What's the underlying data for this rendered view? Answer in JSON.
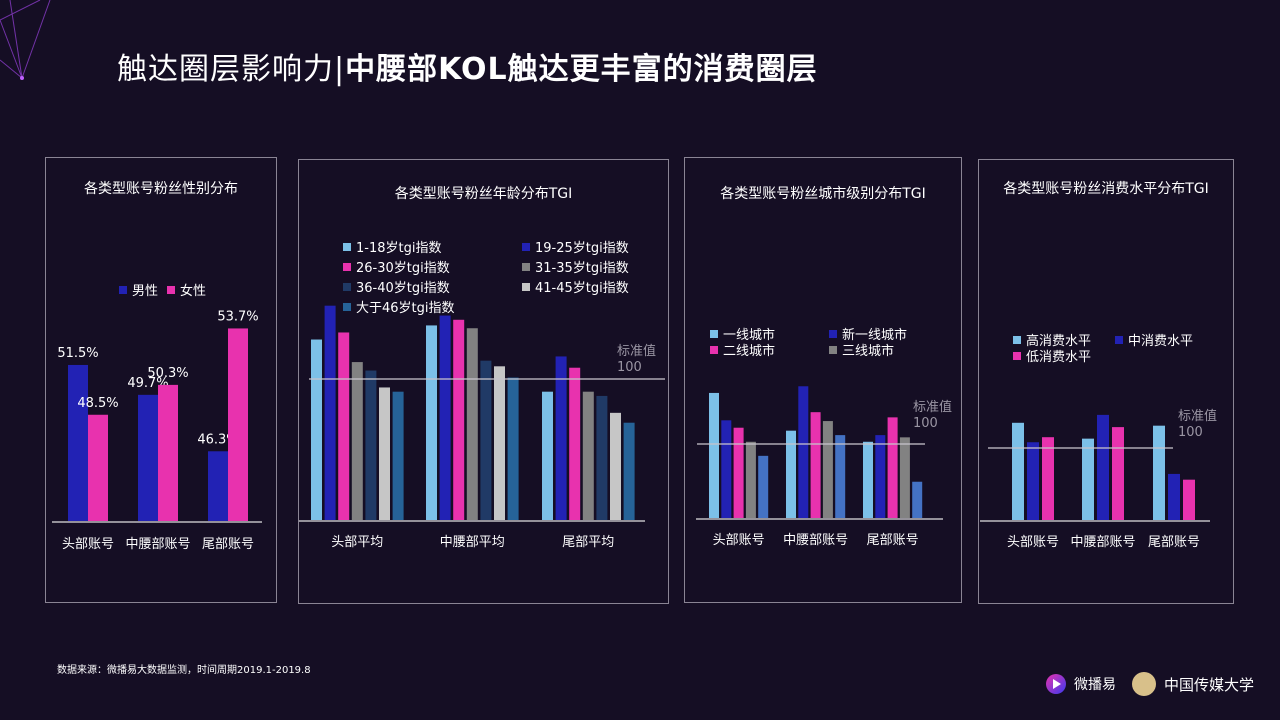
{
  "title": {
    "part1": "触达圈层影响力|",
    "part2": "中腰部KOL触达更丰富的消费圈层"
  },
  "source": "数据来源：微播易大数据监测，时间周期2019.1-2019.8",
  "logos": {
    "weiboyi": "微播易",
    "cuc": "中国传媒大学"
  },
  "standard_label": {
    "line1": "标准值",
    "line2": "100"
  },
  "chart_data": [
    {
      "type": "bar",
      "title": "各类型账号粉丝性别分布",
      "categories": [
        "头部账号",
        "中腰部账号",
        "尾部账号"
      ],
      "series": [
        {
          "name": "男性",
          "color": "#2222b4",
          "values": [
            51.5,
            49.7,
            46.3
          ]
        },
        {
          "name": "女性",
          "color": "#e832ae",
          "values": [
            48.5,
            50.3,
            53.7
          ]
        }
      ],
      "data_labels": [
        "51.5%",
        "49.7%",
        "46.3%",
        "48.5%",
        "50.3%",
        "53.7%"
      ],
      "legend": "top"
    },
    {
      "type": "bar",
      "title": "各类型账号粉丝年龄分布TGI",
      "categories": [
        "头部平均",
        "中腰部平均",
        "尾部平均"
      ],
      "reference_line": 100,
      "series": [
        {
          "name": "1-18岁tgi指数",
          "color": "#7cc0e8",
          "values": [
            128,
            138,
            91
          ]
        },
        {
          "name": "19-25岁tgi指数",
          "color": "#2222b4",
          "values": [
            152,
            145,
            116
          ]
        },
        {
          "name": "26-30岁tgi指数",
          "color": "#e832ae",
          "values": [
            133,
            142,
            108
          ]
        },
        {
          "name": "31-35岁tgi指数",
          "color": "#828282",
          "values": [
            112,
            136,
            91
          ]
        },
        {
          "name": "36-40岁tgi指数",
          "color": "#203a66",
          "values": [
            106,
            113,
            88
          ]
        },
        {
          "name": "41-45岁tgi指数",
          "color": "#c6c6c6",
          "values": [
            94,
            109,
            76
          ]
        },
        {
          "name": "大于46岁tgi指数",
          "color": "#266398",
          "values": [
            91,
            101,
            69
          ]
        }
      ],
      "legend": "top"
    },
    {
      "type": "bar",
      "title": "各类型账号粉丝城市级别分布TGI",
      "categories": [
        "头部账号",
        "中腰部账号",
        "尾部账号"
      ],
      "reference_line": 100,
      "series": [
        {
          "name": "一线城市",
          "color": "#7cc0e8",
          "values": [
            169,
            118,
            103
          ]
        },
        {
          "name": "新一线城市",
          "color": "#2222b4",
          "values": [
            132,
            178,
            112
          ]
        },
        {
          "name": "二线城市",
          "color": "#e832ae",
          "values": [
            122,
            143,
            136
          ]
        },
        {
          "name": "三线城市",
          "color": "#828282",
          "values": [
            103,
            131,
            109
          ]
        },
        {
          "color": "#4472c4",
          "values": [
            84,
            112,
            49
          ]
        }
      ],
      "legend": "top"
    },
    {
      "type": "bar",
      "title": "各类型账号粉丝消费水平分布TGI",
      "categories": [
        "头部账号",
        "中腰部账号",
        "尾部账号"
      ],
      "reference_line": 100,
      "series": [
        {
          "name": "高消费水平",
          "color": "#7cc0e8",
          "values": [
            135,
            113,
            131
          ]
        },
        {
          "name": "中消费水平",
          "color": "#2222b4",
          "values": [
            108,
            146,
            64
          ]
        },
        {
          "name": "低消费水平",
          "color": "#e832ae",
          "values": [
            115,
            129,
            56
          ]
        }
      ],
      "legend": "top"
    }
  ]
}
